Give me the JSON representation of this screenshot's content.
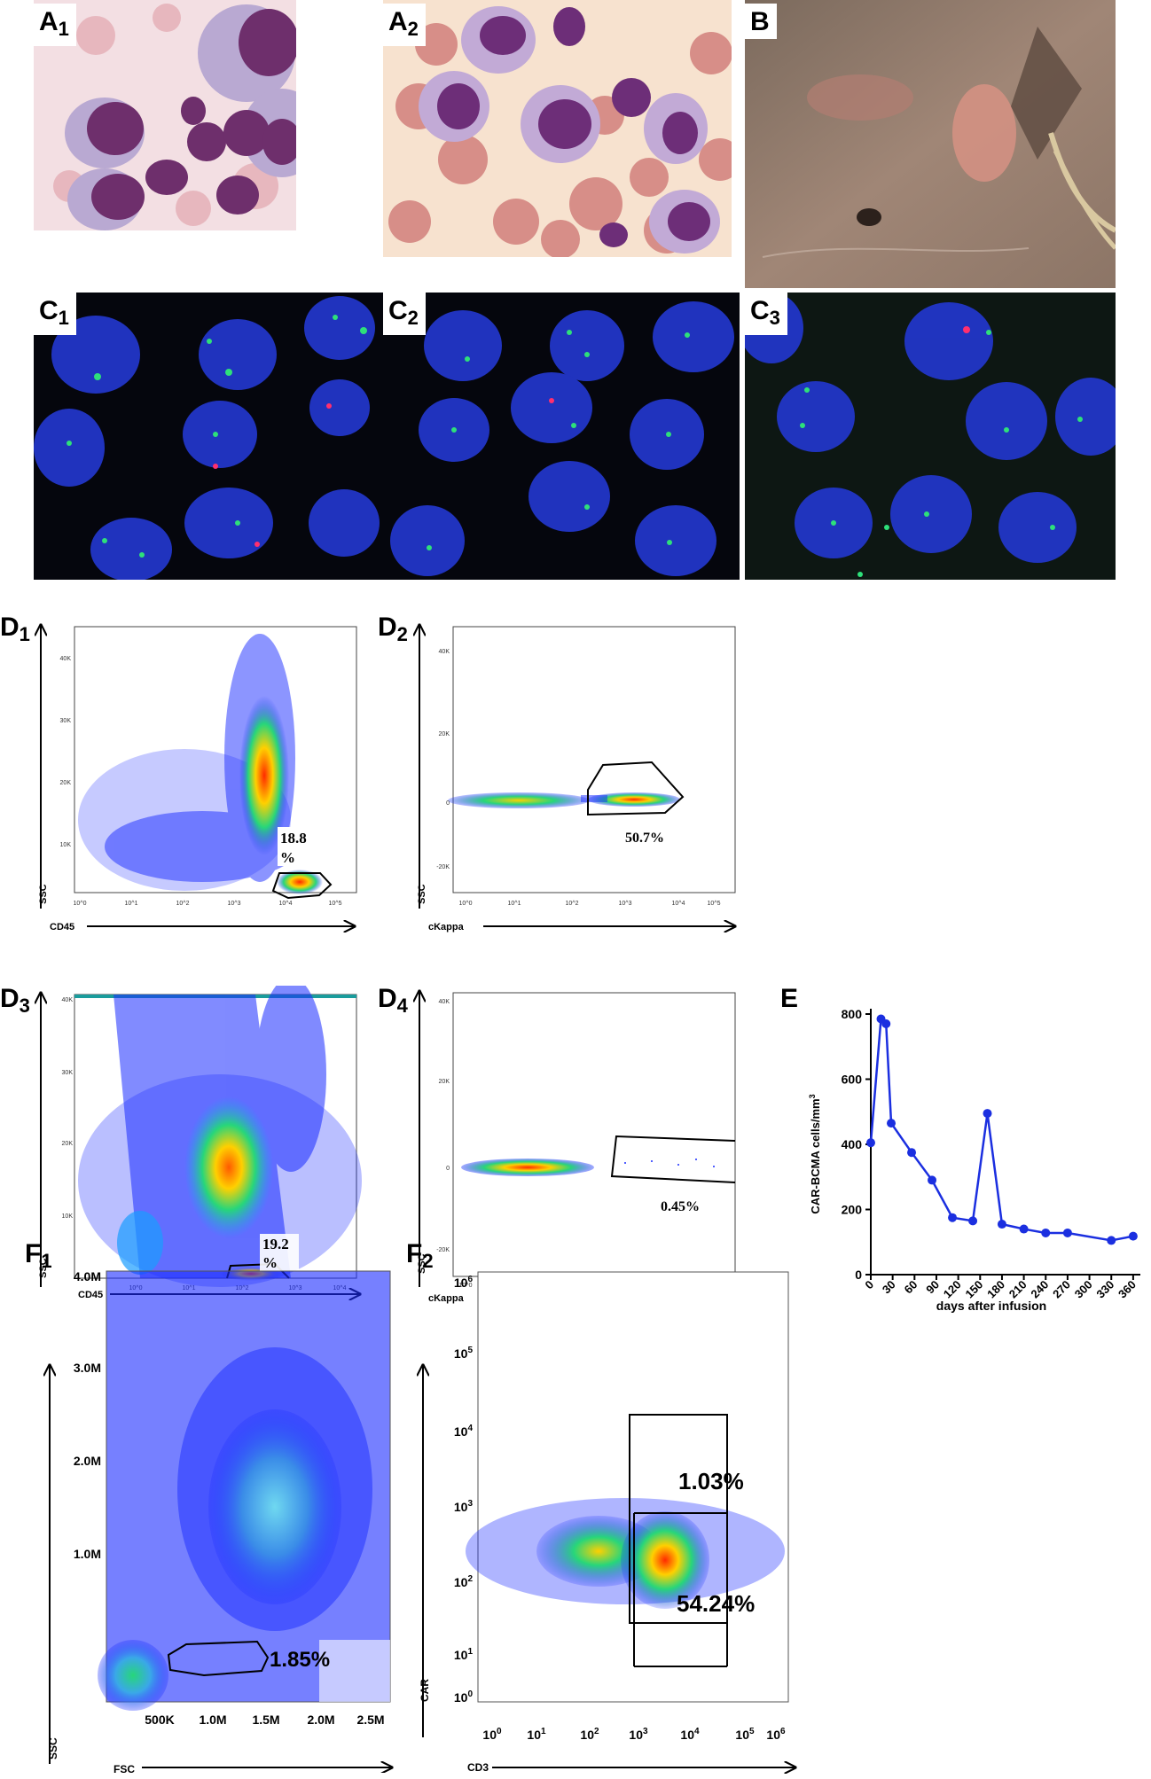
{
  "panels": {
    "a1": {
      "letter": "A",
      "sub": "1"
    },
    "a2": {
      "letter": "A",
      "sub": "2"
    },
    "b": {
      "letter": "B"
    },
    "c1": {
      "letter": "C",
      "sub": "1"
    },
    "c2": {
      "letter": "C",
      "sub": "2"
    },
    "c3": {
      "letter": "C",
      "sub": "3"
    },
    "d1": {
      "letter": "D",
      "sub": "1",
      "xlabel": "CD45",
      "ylabel": "SSC",
      "gate_value": "18.8",
      "gate_unit": "%"
    },
    "d2": {
      "letter": "D",
      "sub": "2",
      "xlabel": "cKappa",
      "ylabel": "SSC",
      "gate_value": "50.7%"
    },
    "d3": {
      "letter": "D",
      "sub": "3",
      "xlabel": "CD45",
      "ylabel": "SSC",
      "gate_value": "19.2",
      "gate_unit": "%"
    },
    "d4": {
      "letter": "D",
      "sub": "4",
      "xlabel": "cKappa",
      "ylabel": "SSC",
      "gate_value": "0.45%"
    },
    "e": {
      "letter": "E"
    },
    "f1": {
      "letter": "F",
      "sub": "1",
      "xlabel": "FSC",
      "ylabel": "SSC",
      "gate_value": "1.85%",
      "xticks": [
        "500K",
        "1.0M",
        "1.5M",
        "2.0M",
        "2.5M"
      ],
      "yticks": [
        "4.0M",
        "3.0M",
        "2.0M",
        "1.0M"
      ]
    },
    "f2": {
      "letter": "F",
      "sub": "2",
      "xlabel": "CD3",
      "ylabel": "CAR",
      "gate_upper": "1.03%",
      "gate_lower": "54.24%"
    }
  },
  "flow_ticks": {
    "d_y": [
      "40K",
      "30K",
      "20K",
      "10K"
    ],
    "d2_y": [
      "40K",
      "20K",
      "0",
      "-20K"
    ],
    "d_x": [
      "10^0",
      "10^1",
      "10^2",
      "10^3",
      "10^4",
      "10^5"
    ]
  },
  "colors": {
    "flow_blue": "#1a2cff",
    "flow_hot": "#ff2a00",
    "line_blue": "#1b2fe0",
    "fish_bg": "#05060d",
    "nucleus": "#2236c8"
  },
  "chart_data": {
    "type": "line",
    "title": "",
    "xlabel": "days after infusion",
    "ylabel": "CAR-BCMA cells/mm",
    "ylabel_sup": "3",
    "xlim": [
      0,
      365
    ],
    "ylim": [
      0,
      800
    ],
    "xticks": [
      0,
      30,
      60,
      90,
      120,
      150,
      180,
      210,
      240,
      270,
      300,
      330,
      360
    ],
    "yticks": [
      0,
      200,
      400,
      600,
      800
    ],
    "series": [
      {
        "x": [
          0,
          14,
          21,
          28,
          56,
          84,
          112,
          140,
          160,
          180,
          210,
          240,
          270,
          330,
          360
        ],
        "y": [
          405,
          785,
          770,
          465,
          375,
          290,
          175,
          165,
          495,
          155,
          140,
          128,
          128,
          105,
          118
        ]
      }
    ]
  }
}
